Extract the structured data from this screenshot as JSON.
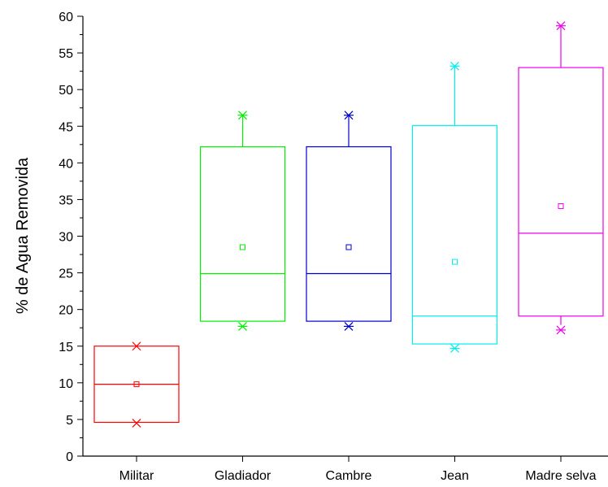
{
  "chart_data": {
    "type": "box",
    "title": "",
    "xlabel": "",
    "ylabel": "% de Agua Removida",
    "ylim": [
      0,
      60
    ],
    "yticks": [
      0,
      5,
      10,
      15,
      20,
      25,
      30,
      35,
      40,
      45,
      50,
      55,
      60
    ],
    "grid": false,
    "categories": [
      "Militar",
      "Gladiador",
      "Cambre",
      "Jean",
      "Madre selva"
    ],
    "series": [
      {
        "color": "#ff0000",
        "min": 4.6,
        "q1": 4.6,
        "median": 9.8,
        "q3": 15.0,
        "max": 15.0,
        "mean": 9.8,
        "outliers": [
          4.5,
          15.0
        ]
      },
      {
        "color": "#00ee00",
        "min": 18.4,
        "q1": 18.4,
        "median": 24.9,
        "q3": 42.2,
        "max": 46.5,
        "mean": 28.5,
        "outliers": [
          17.7,
          46.5
        ]
      },
      {
        "color": "#0000cc",
        "min": 18.4,
        "q1": 18.4,
        "median": 24.9,
        "q3": 42.2,
        "max": 46.5,
        "mean": 28.5,
        "outliers": [
          17.7,
          46.5
        ]
      },
      {
        "color": "#00eeee",
        "min": 15.3,
        "q1": 15.3,
        "median": 19.1,
        "q3": 45.1,
        "max": 53.2,
        "mean": 26.5,
        "outliers": [
          14.7,
          53.2
        ]
      },
      {
        "color": "#ee00ee",
        "min": 17.9,
        "q1": 19.1,
        "median": 30.4,
        "q3": 53.0,
        "max": 58.7,
        "mean": 34.1,
        "outliers": [
          17.2,
          58.7
        ]
      }
    ]
  }
}
